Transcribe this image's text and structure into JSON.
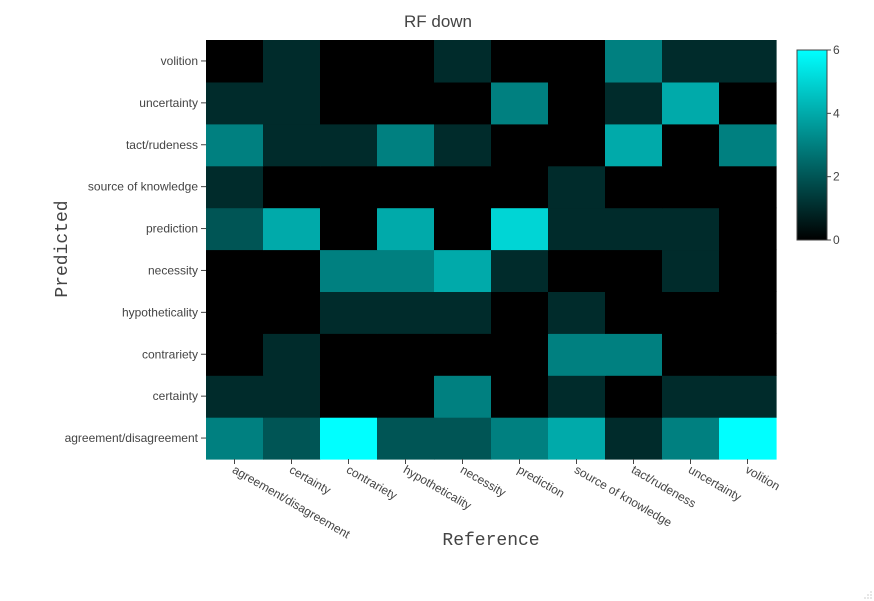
{
  "chart_data": {
    "type": "heatmap",
    "title": "RF down",
    "xlabel": "Reference",
    "ylabel": "Predicted",
    "x_categories": [
      "agreement/disagreement",
      "certainty",
      "contrariety",
      "hypotheticality",
      "necessity",
      "prediction",
      "source of knowledge",
      "tact/rudeness",
      "uncertainty",
      "volition"
    ],
    "y_categories": [
      "agreement/disagreement",
      "certainty",
      "contrariety",
      "hypotheticality",
      "necessity",
      "prediction",
      "source of knowledge",
      "tact/rudeness",
      "uncertainty",
      "volition"
    ],
    "z": [
      [
        3,
        2,
        6,
        2,
        2,
        3,
        4,
        1,
        3,
        6
      ],
      [
        1,
        1,
        0,
        0,
        3,
        0,
        1,
        0,
        1,
        1
      ],
      [
        0,
        1,
        0,
        0,
        0,
        0,
        3,
        3,
        0,
        0
      ],
      [
        0,
        0,
        1,
        1,
        1,
        0,
        1,
        0,
        0,
        0
      ],
      [
        0,
        0,
        3,
        3,
        4,
        1,
        0,
        0,
        1,
        0
      ],
      [
        2,
        4,
        0,
        4,
        0,
        5,
        1,
        1,
        1,
        0
      ],
      [
        1,
        0,
        0,
        0,
        0,
        0,
        1,
        0,
        0,
        0
      ],
      [
        3,
        1,
        1,
        3,
        1,
        0,
        0,
        4,
        0,
        3
      ],
      [
        1,
        1,
        0,
        0,
        0,
        3,
        0,
        1,
        4,
        0
      ],
      [
        0,
        1,
        0,
        0,
        1,
        0,
        0,
        3,
        1,
        1
      ]
    ],
    "zmin": 0,
    "zmax": 6,
    "colorscale": [
      "#000000",
      "#00ffff"
    ],
    "colorbar_ticks": [
      0,
      2,
      4,
      6
    ]
  }
}
